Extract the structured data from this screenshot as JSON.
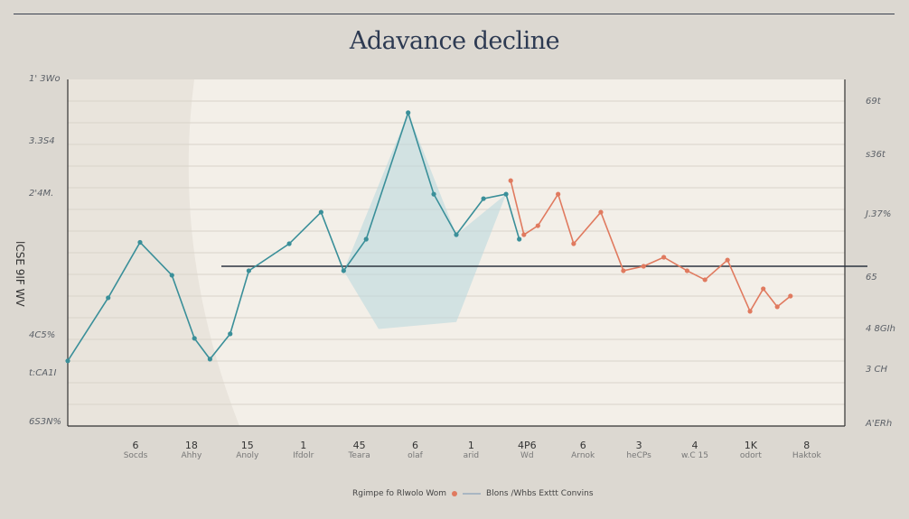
{
  "chart_data": {
    "type": "line",
    "title": "Adavance decline",
    "ylabel": "lCSE 9IF WV",
    "xlim": [
      0,
      100
    ],
    "ylim": [
      0,
      100
    ],
    "grid": true,
    "y_ticks_left": [
      "1' 3Wo",
      "3.3S4",
      "2'4M.",
      "4C5%",
      "t:CA1I",
      "6S3N%"
    ],
    "y_ticks_right": [
      "69t",
      "s36t",
      "J.37%",
      "65",
      "4 8GIh",
      "3 CH",
      "A'ERh"
    ],
    "x_ticks": [
      {
        "n": "6",
        "l": "Socds"
      },
      {
        "n": "18",
        "l": "Ahhy"
      },
      {
        "n": "15",
        "l": "Anoly"
      },
      {
        "n": "1",
        "l": "Ifdolr"
      },
      {
        "n": "45",
        "l": "Teara"
      },
      {
        "n": "6",
        "l": "olaf"
      },
      {
        "n": "1",
        "l": "arid"
      },
      {
        "n": "4P6",
        "l": "Wd"
      },
      {
        "n": "6",
        "l": "Arnok"
      },
      {
        "n": "3",
        "l": "heCPs"
      },
      {
        "n": "4",
        "l": "w.C 15"
      },
      {
        "n": "1K",
        "l": "odort"
      },
      {
        "n": "8",
        "l": "Haktok"
      }
    ],
    "reference_line": {
      "y": 46.1,
      "label": "65"
    },
    "series": [
      {
        "color": "#3a8f99",
        "x": [
          0,
          5.2,
          9.3,
          13.4,
          16.3,
          18.3,
          20.9,
          23.3,
          28.5,
          32.6,
          35.5,
          38.4,
          43.8,
          47.1,
          50,
          53.5,
          56.4,
          58.1
        ],
        "y": [
          18.8,
          37,
          53,
          43.5,
          25.3,
          19.3,
          26.6,
          44.8,
          52.6,
          61.7,
          44.8,
          53.9,
          90.4,
          66.9,
          55.2,
          65.6,
          66.9,
          53.9
        ]
      },
      {
        "color": "#e07a5f",
        "x": [
          57,
          58.7,
          60.5,
          63.1,
          65.1,
          68.6,
          71.5,
          74.1,
          76.7,
          79.7,
          82,
          84.9,
          87.8,
          89.5,
          91.3,
          93
        ],
        "y": [
          70.8,
          55.2,
          57.8,
          66.9,
          52.6,
          61.7,
          44.8,
          46.1,
          48.7,
          44.8,
          42.2,
          47.9,
          33.1,
          39.6,
          34.4,
          37.5
        ]
      }
    ],
    "legend": {
      "placement": "bottom",
      "items": [
        "Rgimpe fo Rlwolo Wom",
        "Blons /Whbs Exttt Convins"
      ]
    }
  }
}
